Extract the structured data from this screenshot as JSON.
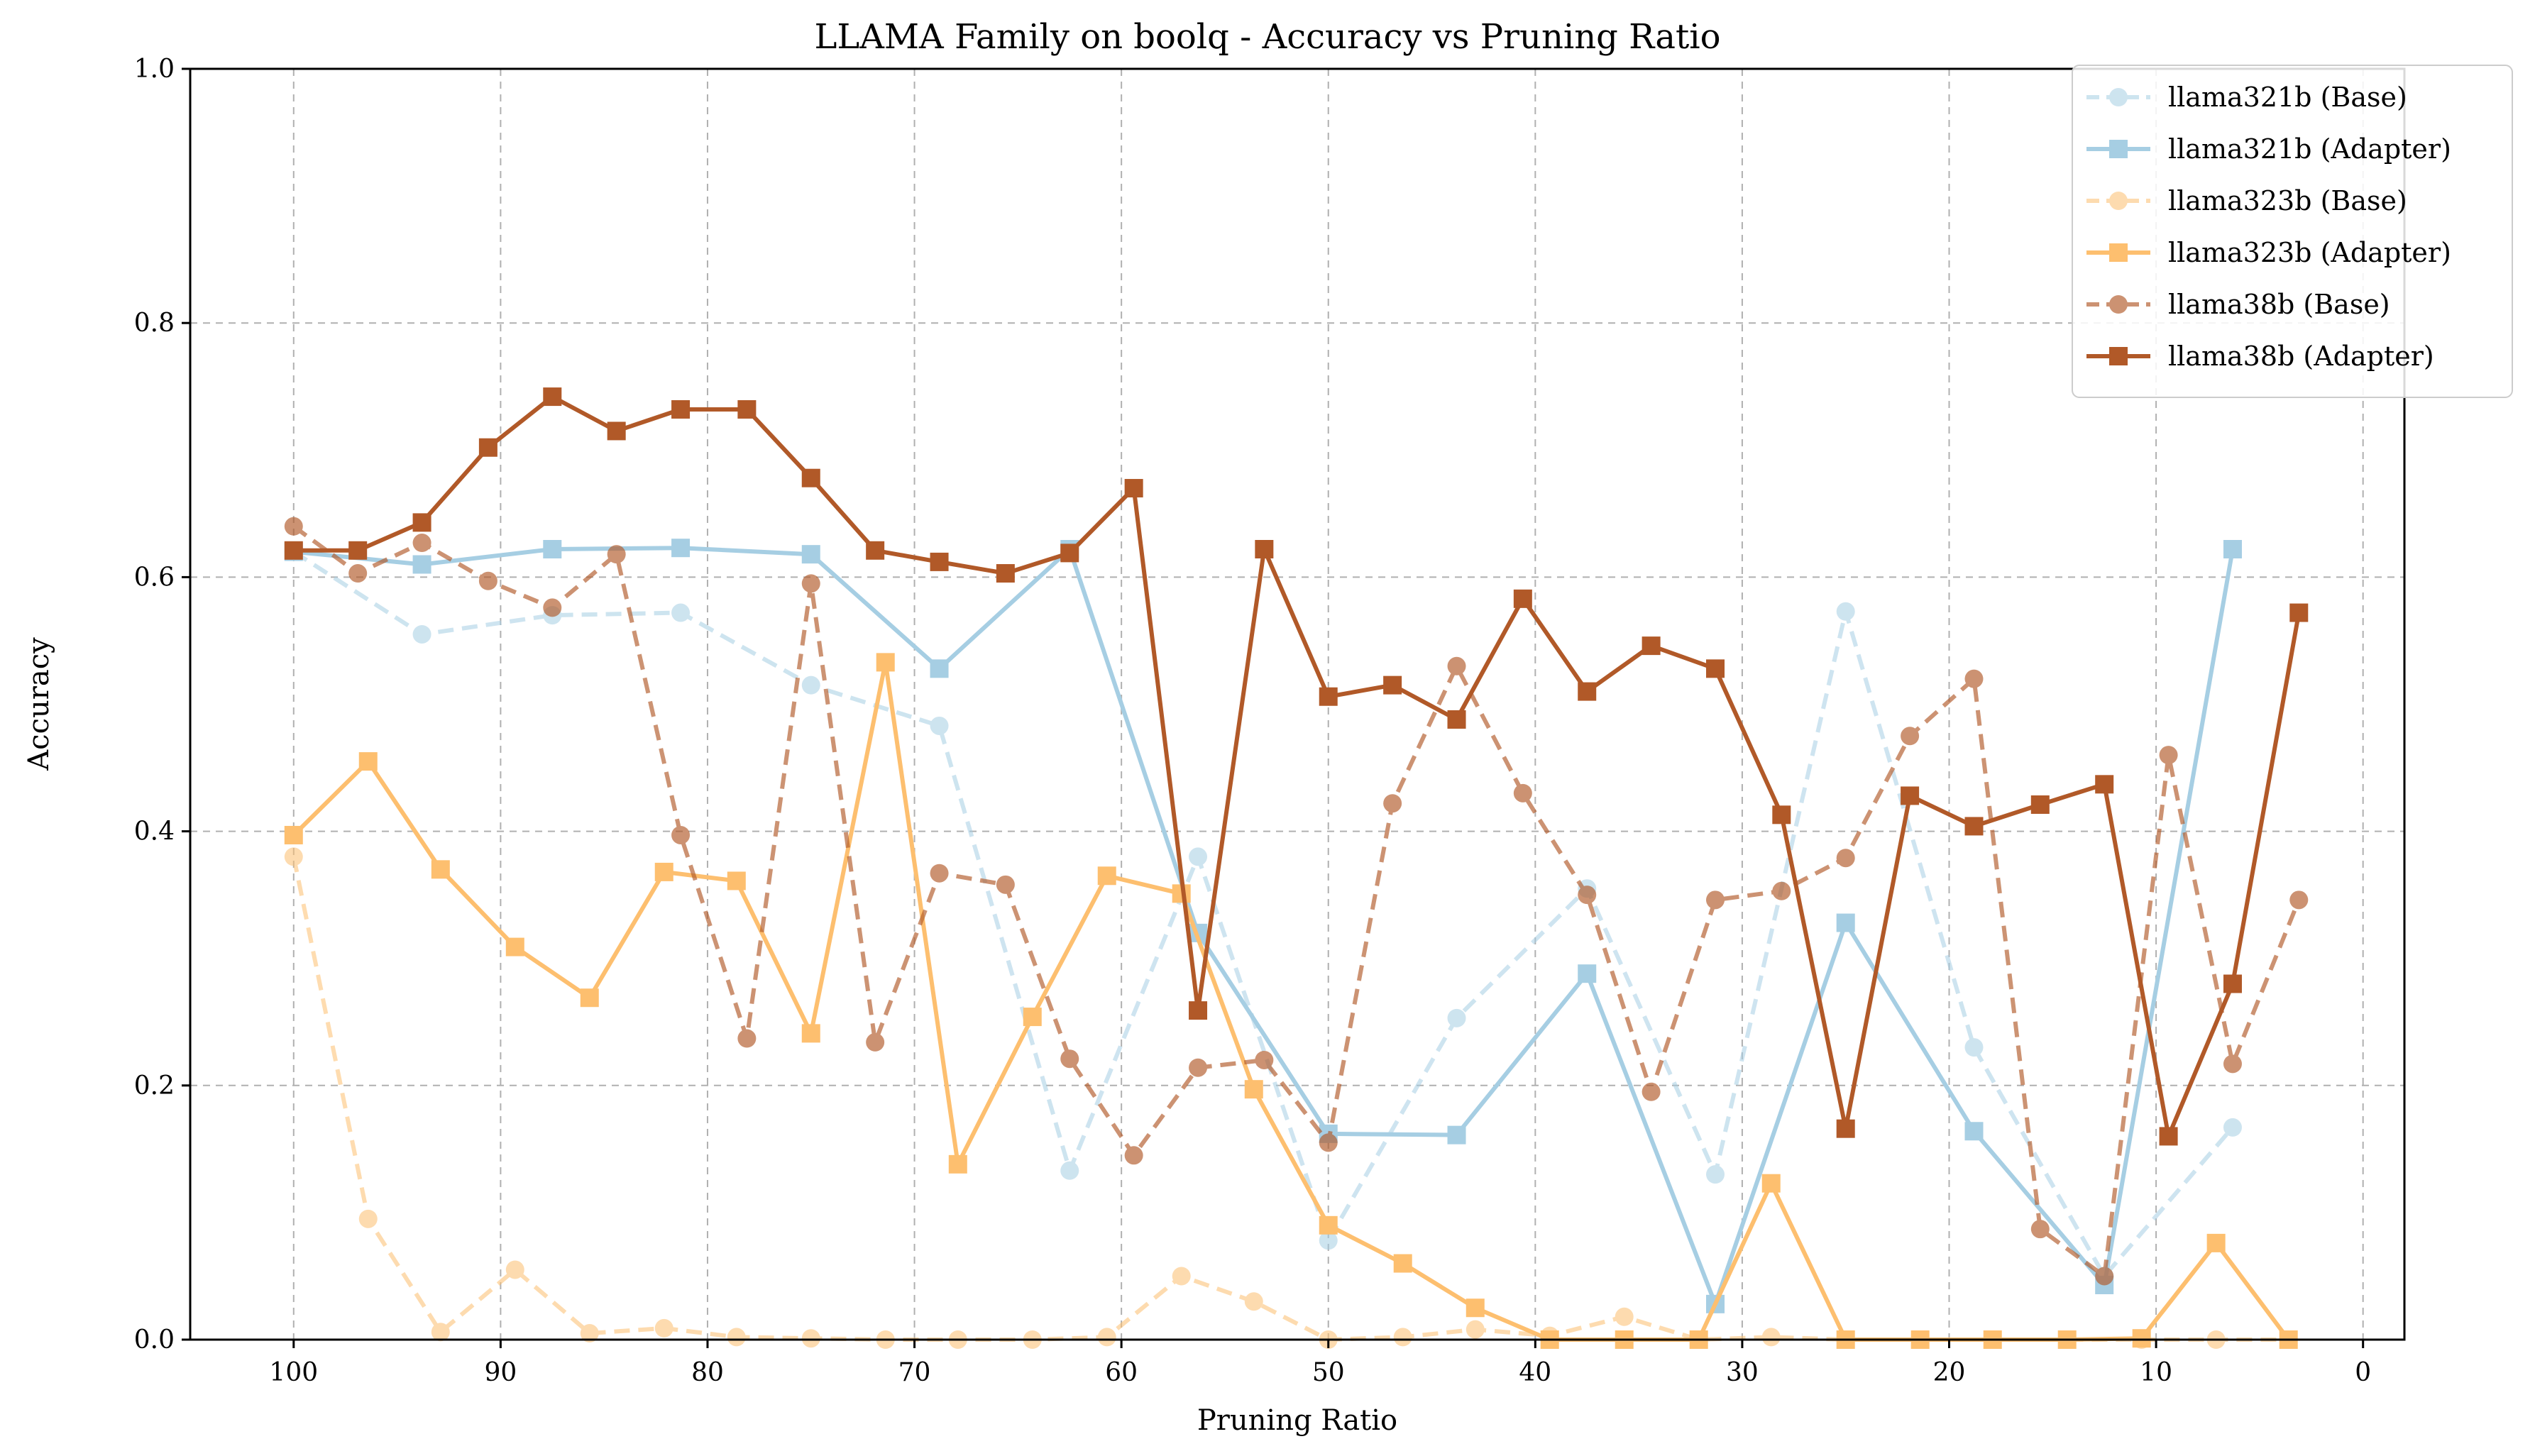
{
  "chart_data": {
    "type": "line",
    "title": "LLAMA Family on boolq - Accuracy vs Pruning Ratio",
    "xlabel": "Pruning Ratio",
    "ylabel": "Accuracy",
    "xlim": [
      105,
      -2
    ],
    "ylim": [
      0,
      1
    ],
    "x_reversed": true,
    "xticks": [
      100,
      90,
      80,
      70,
      60,
      50,
      40,
      30,
      20,
      10,
      0
    ],
    "yticks": [
      0.0,
      0.2,
      0.4,
      0.6,
      0.8,
      1.0
    ],
    "ytick_labels": [
      "0.0",
      "0.2",
      "0.4",
      "0.6",
      "0.8",
      "1.0"
    ],
    "grid": true,
    "legend_position": "top-right",
    "series": [
      {
        "name": "llama321b (Base)",
        "color": "#a6cee3",
        "style": "dashed",
        "marker": "circle",
        "alpha": 0.55,
        "points": [
          [
            100,
            0.62
          ],
          [
            93.8,
            0.555
          ],
          [
            87.5,
            0.57
          ],
          [
            81.3,
            0.572
          ],
          [
            75,
            0.515
          ],
          [
            68.8,
            0.483
          ],
          [
            62.5,
            0.133
          ],
          [
            56.3,
            0.38
          ],
          [
            50,
            0.078
          ],
          [
            43.8,
            0.253
          ],
          [
            37.5,
            0.355
          ],
          [
            31.3,
            0.13
          ],
          [
            25,
            0.573
          ],
          [
            18.8,
            0.23
          ],
          [
            12.5,
            0.05
          ],
          [
            6.3,
            0.167
          ]
        ]
      },
      {
        "name": "llama321b (Adapter)",
        "color": "#a6cee3",
        "style": "solid",
        "marker": "square",
        "alpha": 1,
        "points": [
          [
            100,
            0.62
          ],
          [
            93.8,
            0.61
          ],
          [
            87.5,
            0.622
          ],
          [
            81.3,
            0.623
          ],
          [
            75,
            0.618
          ],
          [
            68.8,
            0.528
          ],
          [
            62.5,
            0.622
          ],
          [
            56.3,
            0.32
          ],
          [
            50,
            0.162
          ],
          [
            43.8,
            0.161
          ],
          [
            37.5,
            0.288
          ],
          [
            31.3,
            0.028
          ],
          [
            25,
            0.328
          ],
          [
            18.8,
            0.164
          ],
          [
            12.5,
            0.043
          ],
          [
            6.3,
            0.622
          ]
        ]
      },
      {
        "name": "llama323b (Base)",
        "color": "#fdbf6f",
        "style": "dashed",
        "marker": "circle",
        "alpha": 0.55,
        "points": [
          [
            100,
            0.38
          ],
          [
            96.4,
            0.095
          ],
          [
            92.9,
            0.006
          ],
          [
            89.3,
            0.055
          ],
          [
            85.7,
            0.005
          ],
          [
            82.1,
            0.009
          ],
          [
            78.6,
            0.002
          ],
          [
            75,
            0.001
          ],
          [
            71.4,
            0
          ],
          [
            67.9,
            0
          ],
          [
            64.3,
            0
          ],
          [
            60.7,
            0.002
          ],
          [
            57.1,
            0.05
          ],
          [
            53.6,
            0.03
          ],
          [
            50,
            0
          ],
          [
            46.4,
            0.002
          ],
          [
            42.9,
            0.008
          ],
          [
            39.3,
            0.003
          ],
          [
            35.7,
            0.018
          ],
          [
            32.1,
            0
          ],
          [
            28.6,
            0.002
          ],
          [
            25,
            0
          ],
          [
            21.4,
            0
          ],
          [
            17.9,
            0
          ],
          [
            14.3,
            0
          ],
          [
            10.7,
            0
          ],
          [
            7.1,
            0
          ],
          [
            3.6,
            0
          ]
        ]
      },
      {
        "name": "llama323b (Adapter)",
        "color": "#fdbf6f",
        "style": "solid",
        "marker": "square",
        "alpha": 1,
        "points": [
          [
            100,
            0.397
          ],
          [
            96.4,
            0.455
          ],
          [
            92.9,
            0.37
          ],
          [
            89.3,
            0.309
          ],
          [
            85.7,
            0.269
          ],
          [
            82.1,
            0.368
          ],
          [
            78.6,
            0.361
          ],
          [
            75,
            0.241
          ],
          [
            71.4,
            0.533
          ],
          [
            67.9,
            0.138
          ],
          [
            64.3,
            0.254
          ],
          [
            60.7,
            0.365
          ],
          [
            57.1,
            0.351
          ],
          [
            53.6,
            0.197
          ],
          [
            50,
            0.09
          ],
          [
            46.4,
            0.06
          ],
          [
            42.9,
            0.025
          ],
          [
            39.3,
            0
          ],
          [
            35.7,
            0
          ],
          [
            32.1,
            0
          ],
          [
            28.6,
            0.123
          ],
          [
            25,
            0
          ],
          [
            21.4,
            0
          ],
          [
            17.9,
            0
          ],
          [
            14.3,
            0
          ],
          [
            10.7,
            0.001
          ],
          [
            7.1,
            0.076
          ],
          [
            3.6,
            0
          ]
        ]
      },
      {
        "name": "llama38b (Base)",
        "color": "#b15928",
        "style": "dashed",
        "marker": "circle",
        "alpha": 0.65,
        "points": [
          [
            100,
            0.64
          ],
          [
            96.9,
            0.603
          ],
          [
            93.8,
            0.627
          ],
          [
            90.6,
            0.597
          ],
          [
            87.5,
            0.576
          ],
          [
            84.4,
            0.618
          ],
          [
            81.3,
            0.397
          ],
          [
            78.1,
            0.237
          ],
          [
            75,
            0.595
          ],
          [
            71.9,
            0.234
          ],
          [
            68.8,
            0.367
          ],
          [
            65.6,
            0.358
          ],
          [
            62.5,
            0.221
          ],
          [
            59.4,
            0.145
          ],
          [
            56.3,
            0.214
          ],
          [
            53.1,
            0.22
          ],
          [
            50,
            0.155
          ],
          [
            46.9,
            0.422
          ],
          [
            43.8,
            0.53
          ],
          [
            40.6,
            0.43
          ],
          [
            37.5,
            0.35
          ],
          [
            34.4,
            0.195
          ],
          [
            31.3,
            0.346
          ],
          [
            28.1,
            0.353
          ],
          [
            25,
            0.379
          ],
          [
            21.9,
            0.475
          ],
          [
            18.8,
            0.52
          ],
          [
            15.6,
            0.087
          ],
          [
            12.5,
            0.05
          ],
          [
            9.4,
            0.46
          ],
          [
            6.3,
            0.217
          ],
          [
            3.1,
            0.346
          ]
        ]
      },
      {
        "name": "llama38b (Adapter)",
        "color": "#b15928",
        "style": "solid",
        "marker": "square",
        "alpha": 1,
        "points": [
          [
            100,
            0.621
          ],
          [
            96.9,
            0.621
          ],
          [
            93.8,
            0.643
          ],
          [
            90.6,
            0.702
          ],
          [
            87.5,
            0.742
          ],
          [
            84.4,
            0.715
          ],
          [
            81.3,
            0.732
          ],
          [
            78.1,
            0.732
          ],
          [
            75,
            0.678
          ],
          [
            71.9,
            0.621
          ],
          [
            68.8,
            0.612
          ],
          [
            65.6,
            0.603
          ],
          [
            62.5,
            0.619
          ],
          [
            59.4,
            0.67
          ],
          [
            56.3,
            0.259
          ],
          [
            53.1,
            0.622
          ],
          [
            50,
            0.506
          ],
          [
            46.9,
            0.515
          ],
          [
            43.8,
            0.488
          ],
          [
            40.6,
            0.583
          ],
          [
            37.5,
            0.51
          ],
          [
            34.4,
            0.546
          ],
          [
            31.3,
            0.528
          ],
          [
            28.1,
            0.413
          ],
          [
            25,
            0.166
          ],
          [
            21.9,
            0.428
          ],
          [
            18.8,
            0.404
          ],
          [
            15.6,
            0.421
          ],
          [
            12.5,
            0.437
          ],
          [
            9.4,
            0.16
          ],
          [
            6.3,
            0.28
          ],
          [
            3.1,
            0.572
          ]
        ]
      }
    ]
  }
}
